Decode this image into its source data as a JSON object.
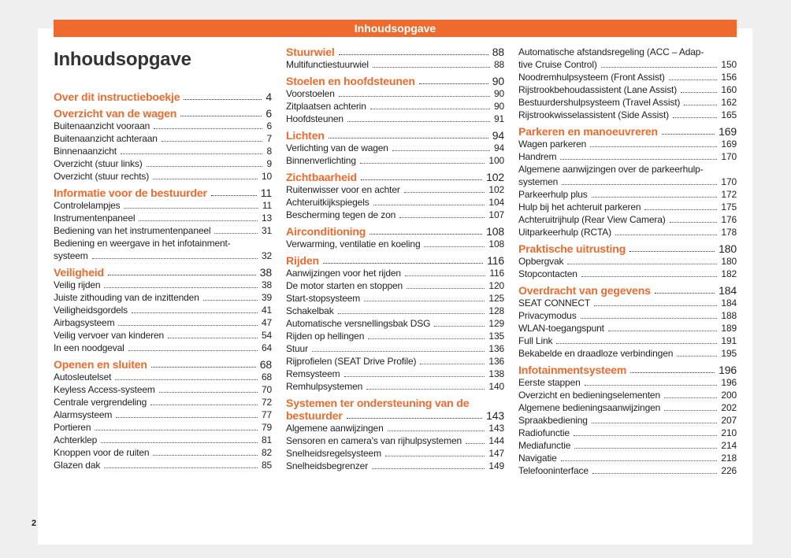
{
  "header": {
    "banner": "Inhoudsopgave"
  },
  "title": "Inhoudsopgave",
  "page_number": 2,
  "columns": [
    [
      {
        "title": "Over dit instructieboekje",
        "page": 4,
        "entries": []
      },
      {
        "title": "Overzicht van de wagen",
        "page": 6,
        "entries": [
          {
            "text": "Buitenaanzicht vooraan",
            "page": 6
          },
          {
            "text": "Buitenaanzicht achteraan",
            "page": 7
          },
          {
            "text": "Binnenaanzicht",
            "page": 8
          },
          {
            "text": "Overzicht (stuur links)",
            "page": 9
          },
          {
            "text": "Overzicht (stuur rechts)",
            "page": 10
          }
        ]
      },
      {
        "title": "Informatie voor de bestuurder",
        "page": 11,
        "entries": [
          {
            "text": "Controlelampjes",
            "page": 11
          },
          {
            "text": "Instrumentenpaneel",
            "page": 13
          },
          {
            "text": "Bediening van het instrumentenpaneel",
            "page": 31
          },
          {
            "lines": [
              "Bediening en weergave in het infotainment-",
              "systeem"
            ],
            "page": 32
          }
        ]
      },
      {
        "title": "Veiligheid",
        "page": 38,
        "entries": [
          {
            "text": "Veilig rijden",
            "page": 38
          },
          {
            "text": "Juiste zithouding van de inzittenden",
            "page": 39
          },
          {
            "text": "Veiligheidsgordels",
            "page": 41
          },
          {
            "text": "Airbagsysteem",
            "page": 47
          },
          {
            "text": "Veilig vervoer van kinderen",
            "page": 54
          },
          {
            "text": "In een noodgeval",
            "page": 64
          }
        ]
      },
      {
        "title": "Openen en sluiten",
        "page": 68,
        "entries": [
          {
            "text": "Autosleutelset",
            "page": 68
          },
          {
            "text": "Keyless Access-systeem",
            "page": 70
          },
          {
            "text": "Centrale vergrendeling",
            "page": 72
          },
          {
            "text": "Alarmsysteem",
            "page": 77
          },
          {
            "text": "Portieren",
            "page": 79
          },
          {
            "text": "Achterklep",
            "page": 81
          },
          {
            "text": "Knoppen voor de ruiten",
            "page": 82
          },
          {
            "text": "Glazen dak",
            "page": 85
          }
        ]
      }
    ],
    [
      {
        "title": "Stuurwiel",
        "page": 88,
        "entries": [
          {
            "text": "Multifunctiestuurwiel",
            "page": 88
          }
        ]
      },
      {
        "title": "Stoelen en hoofdsteunen",
        "page": 90,
        "entries": [
          {
            "text": "Voorstoelen",
            "page": 90
          },
          {
            "text": "Zitplaatsen achterin",
            "page": 90
          },
          {
            "text": "Hoofdsteunen",
            "page": 91
          }
        ]
      },
      {
        "title": "Lichten",
        "page": 94,
        "entries": [
          {
            "text": "Verlichting van de wagen",
            "page": 94
          },
          {
            "text": "Binnenverlichting",
            "page": 100
          }
        ]
      },
      {
        "title": "Zichtbaarheid",
        "page": 102,
        "entries": [
          {
            "text": "Ruitenwisser voor en achter",
            "page": 102
          },
          {
            "text": "Achteruitkijkspiegels",
            "page": 104
          },
          {
            "text": "Bescherming tegen de zon",
            "page": 107
          }
        ]
      },
      {
        "title": "Airconditioning",
        "page": 108,
        "entries": [
          {
            "text": "Verwarming, ventilatie en koeling",
            "page": 108
          }
        ]
      },
      {
        "title": "Rijden",
        "page": 116,
        "entries": [
          {
            "text": "Aanwijzingen voor het rijden",
            "page": 116
          },
          {
            "text": "De motor starten en stoppen",
            "page": 120
          },
          {
            "text": "Start-stopsysteem",
            "page": 125
          },
          {
            "text": "Schakelbak",
            "page": 128
          },
          {
            "text": "Automatische versnellingsbak DSG",
            "page": 129
          },
          {
            "text": "Rijden op hellingen",
            "page": 135
          },
          {
            "text": "Stuur",
            "page": 136
          },
          {
            "text": "Rijprofielen (SEAT Drive Profile)",
            "page": 136
          },
          {
            "text": "Remsysteem",
            "page": 138
          },
          {
            "text": "Remhulpsystemen",
            "page": 140
          }
        ]
      },
      {
        "title_lines": [
          "Systemen ter ondersteuning van de",
          "bestuurder"
        ],
        "page": 143,
        "entries": [
          {
            "text": "Algemene aanwijzingen",
            "page": 143
          },
          {
            "text": "Sensoren en camera's van rijhulpsystemen",
            "page": 144
          },
          {
            "text": "Snelheidsregelsysteem",
            "page": 147
          },
          {
            "text": "Snelheidsbegrenzer",
            "page": 149
          }
        ]
      }
    ],
    [
      {
        "entries": [
          {
            "lines": [
              "Automatische afstandsregeling (ACC – Adap-",
              "tive Cruise Control)"
            ],
            "page": 150
          },
          {
            "text": "Noodremhulpsysteem (Front Assist)",
            "page": 156
          },
          {
            "text": "Rijstrookbehoudassistent (Lane Assist)",
            "page": 160
          },
          {
            "text": "Bestuurdershulpsysteem (Travel Assist)",
            "page": 162
          },
          {
            "text": "Rijstrookwisselassistent (Side Assist)",
            "page": 165
          }
        ]
      },
      {
        "title": "Parkeren en manoeuvreren",
        "page": 169,
        "entries": [
          {
            "text": "Wagen parkeren",
            "page": 169
          },
          {
            "text": "Handrem",
            "page": 170
          },
          {
            "lines": [
              "Algemene aanwijzingen over de parkeerhulp-",
              "systemen"
            ],
            "page": 170
          },
          {
            "text": "Parkeerhulp plus",
            "page": 172
          },
          {
            "text": "Hulp bij het achteruit parkeren",
            "page": 175
          },
          {
            "text": "Achteruitrijhulp (Rear View Camera)",
            "page": 176
          },
          {
            "text": "Uitparkeerhulp (RCTA)",
            "page": 178
          }
        ]
      },
      {
        "title": "Praktische uitrusting",
        "page": 180,
        "entries": [
          {
            "text": "Opbergvak",
            "page": 180
          },
          {
            "text": "Stopcontacten",
            "page": 182
          }
        ]
      },
      {
        "title": "Overdracht van gegevens",
        "page": 184,
        "entries": [
          {
            "text": "SEAT CONNECT",
            "page": 184
          },
          {
            "text": "Privacymodus",
            "page": 188
          },
          {
            "text": "WLAN-toegangspunt",
            "page": 189
          },
          {
            "text": "Full Link",
            "page": 191
          },
          {
            "text": "Bekabelde en draadloze verbindingen",
            "page": 195
          }
        ]
      },
      {
        "title": "Infotainmentsysteem",
        "page": 196,
        "entries": [
          {
            "text": "Eerste stappen",
            "page": 196
          },
          {
            "text": "Overzicht en bedieningselementen",
            "page": 200
          },
          {
            "text": "Algemene bedieningsaanwijzingen",
            "page": 202
          },
          {
            "text": "Spraakbediening",
            "page": 207
          },
          {
            "text": "Radiofunctie",
            "page": 210
          },
          {
            "text": "Mediafunctie",
            "page": 214
          },
          {
            "text": "Navigatie",
            "page": 218
          },
          {
            "text": "Telefooninterface",
            "page": 226
          }
        ]
      }
    ]
  ]
}
